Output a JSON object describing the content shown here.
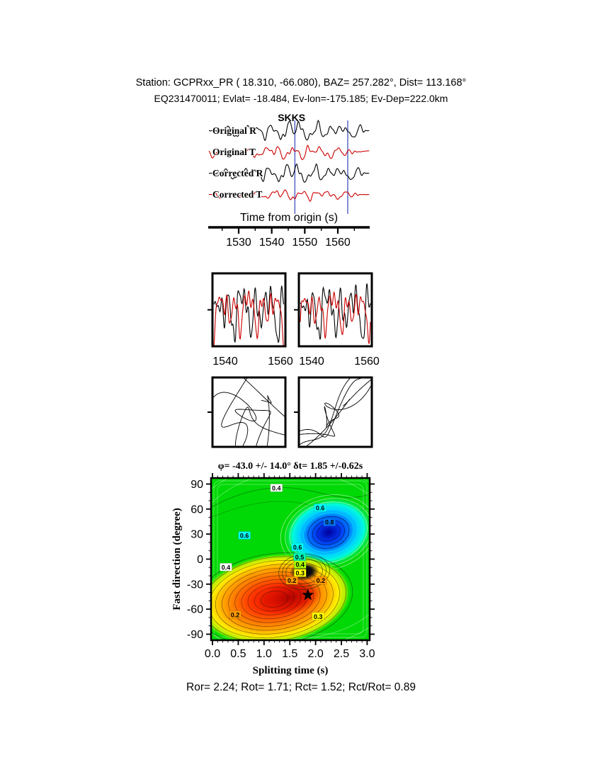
{
  "header": {
    "line1": "Station: GCPRxx_PR (  18.310,  -66.080), BAZ=  257.282°, Dist=  113.168°",
    "line2": "EQ231470011; Evlat= -18.484, Ev-lon=-175.185; Ev-Dep=222.0km"
  },
  "footer": {
    "text": "Ror= 2.24; Rot= 1.71; Rct= 1.52; Rct/Rot= 0.89"
  },
  "colors": {
    "trace_black": "#000000",
    "trace_red": "#cc0000",
    "phase_label": "#dd0000",
    "window_marker": "#3344bb",
    "contour_background": "#00d905",
    "star": "#000000"
  },
  "chart_data": [
    {
      "id": "waveform-traces",
      "type": "line",
      "xlabel": "Time from origin (s)",
      "xlim": [
        1521,
        1569.5
      ],
      "xticks": [
        1530,
        1540,
        1550,
        1560
      ],
      "phase": {
        "label": "SKKS",
        "time": 1546
      },
      "window": [
        1547,
        1563
      ],
      "traces": [
        {
          "label": "Original R",
          "color": "#000000",
          "seed": 3,
          "amp": 1.0
        },
        {
          "label": "Original T",
          "color": "#cc0000",
          "seed": 7,
          "amp": 0.72
        },
        {
          "label": "Corrected R",
          "color": "#000000",
          "seed": 11,
          "amp": 0.95
        },
        {
          "label": "Corrected T",
          "color": "#cc0000",
          "seed": 17,
          "amp": 0.55
        }
      ],
      "synthesis": {
        "n": 240,
        "components": [
          [
            4,
            0.5
          ],
          [
            7,
            0.9
          ],
          [
            11,
            1.0
          ],
          [
            16,
            0.8
          ],
          [
            23,
            0.55
          ],
          [
            31,
            0.3
          ],
          [
            41,
            0.18
          ]
        ]
      }
    },
    {
      "id": "window-seismograms",
      "type": "line",
      "panels": [
        {
          "xticks": [
            "1540",
            "1560"
          ],
          "series": [
            {
              "color": "#000000",
              "seed": 21,
              "amp": 1.0
            },
            {
              "color": "#cc0000",
              "seed": 23,
              "amp": 0.85
            }
          ]
        },
        {
          "xticks": [
            "1540",
            "1560"
          ],
          "series": [
            {
              "color": "#000000",
              "seed": 29,
              "amp": 1.0
            },
            {
              "color": "#cc0000",
              "seed": 31,
              "amp": 0.8
            }
          ]
        }
      ],
      "synthesis": {
        "n": 150,
        "components": [
          [
            3,
            0.7
          ],
          [
            5,
            1.0
          ],
          [
            8,
            0.85
          ],
          [
            13,
            0.6
          ],
          [
            19,
            0.35
          ]
        ]
      }
    },
    {
      "id": "particle-motion",
      "type": "scatter",
      "panels": [
        {
          "seed_x": 5,
          "seed_y": 9,
          "comps_x": [
            [
              2,
              1.0
            ],
            [
              3.5,
              0.8
            ],
            [
              5,
              0.6
            ],
            [
              8,
              0.35
            ]
          ],
          "comps_y": [
            [
              1.7,
              1.0
            ],
            [
              4.2,
              0.8
            ],
            [
              6.3,
              0.5
            ],
            [
              9,
              0.3
            ]
          ]
        },
        {
          "seed_x": 4,
          "seed_y": 4,
          "comps_x": [
            [
              2,
              1.0
            ],
            [
              3.1,
              0.75
            ],
            [
              7,
              0.3
            ],
            [
              11,
              0.15
            ]
          ],
          "comps_y": [
            [
              2,
              0.9
            ],
            [
              3.1,
              0.6
            ],
            [
              8,
              0.25
            ],
            [
              13,
              0.12
            ]
          ]
        }
      ],
      "synthesis": {
        "n": 500
      }
    },
    {
      "id": "splitting-misfit",
      "type": "heatmap",
      "title": "φ= -43.0 +/- 14.0° δt= 1.85 +/-0.62s",
      "xlabel": "Splitting time (s)",
      "ylabel": "Fast direction (degree)",
      "xlim": [
        0,
        3.05
      ],
      "ylim": [
        -97,
        97
      ],
      "xticks": [
        "0.0",
        "0.5",
        "1.0",
        "1.5",
        "2.0",
        "2.5",
        "3.0"
      ],
      "yticks": [
        90,
        60,
        30,
        0,
        -30,
        -60,
        -90
      ],
      "grid": false,
      "best": {
        "phi": -43.0,
        "phi_err": 14.0,
        "dt": 1.85,
        "dt_err": 0.62
      },
      "star": {
        "dt": 1.85,
        "phi": -43.0
      },
      "regions": {
        "background": "#00d905",
        "blue_center": {
          "dt": 2.25,
          "phi": 32
        },
        "red_center": {
          "dt": 1.2,
          "phi": -48
        },
        "red_core": {
          "dt": 1.5,
          "phi": -46
        },
        "dark_center": {
          "dt": 1.78,
          "phi": -15
        }
      },
      "contour_labels": [
        {
          "text": "0.4",
          "dt": 1.24,
          "phi": 85,
          "bg": "#ffffff",
          "fg": "#000000"
        },
        {
          "text": "0.6",
          "dt": 2.09,
          "phi": 61,
          "bg": "#00ffff",
          "fg": "#000000"
        },
        {
          "text": "0.8",
          "dt": 2.27,
          "phi": 44,
          "bg": "#0077ff",
          "fg": "#ffffff"
        },
        {
          "text": "0.6",
          "dt": 0.62,
          "phi": 28,
          "bg": "#00ffff",
          "fg": "#000000"
        },
        {
          "text": "0.6",
          "dt": 1.65,
          "phi": 14,
          "bg": "#00ffff",
          "fg": "#000000"
        },
        {
          "text": "0.5",
          "dt": 1.69,
          "phi": 2,
          "bg": "#00ffbb",
          "fg": "#000000"
        },
        {
          "text": "0.4",
          "dt": 1.7,
          "phi": -7,
          "bg": "#aaff00",
          "fg": "#000000"
        },
        {
          "text": "0.3",
          "dt": 1.7,
          "phi": -17,
          "bg": "#ffff00",
          "fg": "#000000"
        },
        {
          "text": "0.2",
          "dt": 1.54,
          "phi": -26,
          "bg": "#ff9900",
          "fg": "#000000"
        },
        {
          "text": "0.2",
          "dt": 2.1,
          "phi": -26,
          "bg": "#ff9900",
          "fg": "#000000"
        },
        {
          "text": "0.4",
          "dt": 0.26,
          "phi": -10,
          "bg": "#ffffff",
          "fg": "#000000"
        },
        {
          "text": "0.2",
          "dt": 0.44,
          "phi": -67,
          "bg": "#ff9900",
          "fg": "#000000"
        },
        {
          "text": "0.3",
          "dt": 2.05,
          "phi": -69,
          "bg": "#ffff00",
          "fg": "#000000"
        }
      ]
    }
  ]
}
